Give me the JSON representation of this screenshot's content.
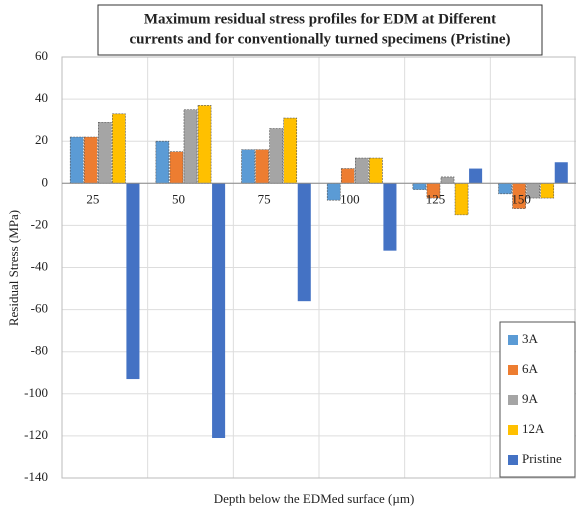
{
  "chart_data": {
    "type": "bar",
    "title": [
      "Maximum residual stress profiles for EDM at Different",
      "currents and for conventionally turned specimens (Pristine)"
    ],
    "x_label": "Depth below the EDMed surface (µm)",
    "y_label": "Residual Stress (MPa)",
    "categories": [
      "25",
      "50",
      "75",
      "100",
      "125",
      "150"
    ],
    "series": [
      {
        "name": "3A",
        "color": "#5b9bd5",
        "values": [
          22,
          20,
          16,
          -8,
          -3,
          -5
        ]
      },
      {
        "name": "6A",
        "color": "#ed7d31",
        "values": [
          22,
          15,
          16,
          7,
          -7,
          -12
        ]
      },
      {
        "name": "9A",
        "color": "#a5a5a5",
        "values": [
          29,
          35,
          26,
          12,
          3,
          -7
        ]
      },
      {
        "name": "12A",
        "color": "#ffc000",
        "values": [
          33,
          37,
          31,
          12,
          -15,
          -7
        ]
      },
      {
        "name": "Pristine",
        "color": "#4472c4",
        "values": [
          -93,
          -121,
          -56,
          -32,
          7,
          10
        ]
      }
    ],
    "ylim": [
      -140,
      60
    ],
    "yticks": [
      60,
      40,
      20,
      0,
      -20,
      -40,
      -60,
      -80,
      -100,
      -120,
      -140
    ],
    "grid": true,
    "legend": "right"
  }
}
